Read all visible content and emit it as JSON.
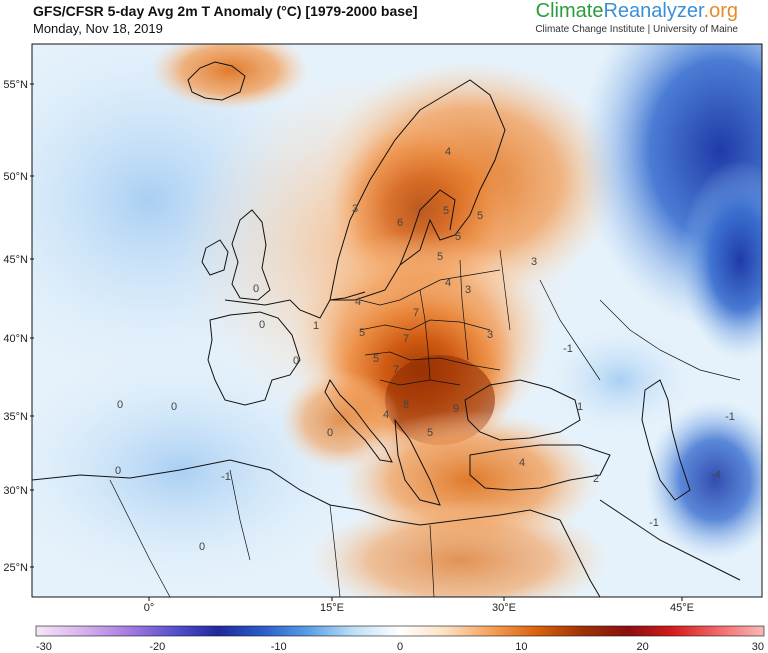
{
  "header": {
    "title": "GFS/CFSR 5-day Avg 2m T Anomaly (°C) [1979-2000 base]",
    "date": "Monday, Nov 18, 2019",
    "brand_part1": "Climate",
    "brand_part2": "Reanalyzer",
    "brand_part3": ".org",
    "brand_sub": "Climate Change Institute | University of Maine"
  },
  "map": {
    "lat_labels": [
      "55°N",
      "50°N",
      "45°N",
      "40°N",
      "35°N",
      "30°N",
      "25°N"
    ],
    "lon_labels": [
      "0°",
      "15°E",
      "30°E",
      "45°E"
    ],
    "contour_labels": [
      "4",
      "3",
      "6",
      "5",
      "5",
      "5",
      "5",
      "3",
      "4",
      "3",
      "4",
      "7",
      "5",
      "7",
      "5",
      "3",
      "7",
      "1",
      "0",
      "0",
      "0",
      "0",
      "8",
      "4",
      "9",
      "5",
      "0",
      "0",
      "4",
      "2",
      "-1",
      "-4",
      "-1",
      "0",
      "0",
      "-1",
      "1",
      "-1"
    ]
  },
  "colorbar": {
    "ticks": [
      "-30",
      "-20",
      "-10",
      "0",
      "10",
      "20",
      "30"
    ],
    "colors": [
      "#f6e6f6",
      "#d9b3ee",
      "#a77ee0",
      "#5a52cf",
      "#1f2a9c",
      "#2c5fc9",
      "#5aa0e6",
      "#bfe0f7",
      "#ffffff",
      "#fde0c2",
      "#f5a15a",
      "#d9620f",
      "#9e3304",
      "#8a0f0f",
      "#d61b1b",
      "#f26a6a",
      "#f9b9b9"
    ]
  }
}
